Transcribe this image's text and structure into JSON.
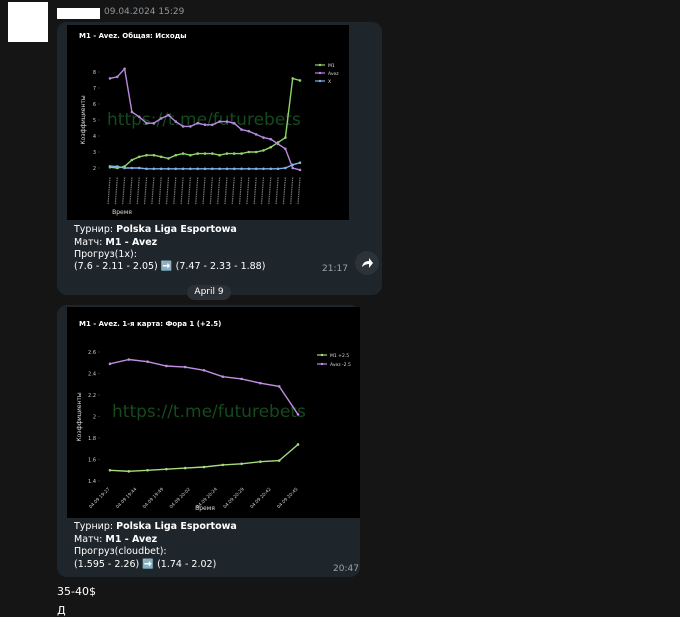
{
  "header": {
    "date": "09.04.2024 15:29"
  },
  "messages": [
    {
      "chart": {
        "type": "line",
        "title": "M1 - Avez. Общая: Исходы",
        "ylabel": "Коэффициенты",
        "xlabel": "Время",
        "watermark": "https://t.me/futurebets",
        "ylim": [
          1.6,
          8.6
        ],
        "yticks": [
          2,
          3,
          4,
          5,
          6,
          7,
          8
        ],
        "legend": "upper right",
        "series": [
          {
            "name": "M1",
            "color": "#8fd46a",
            "values": [
              2.05,
              2.0,
              2.1,
              2.5,
              2.7,
              2.8,
              2.8,
              2.7,
              2.6,
              2.8,
              2.9,
              2.8,
              2.9,
              2.9,
              2.9,
              2.8,
              2.9,
              2.9,
              2.9,
              3.0,
              3.0,
              3.1,
              3.3,
              3.6,
              3.9,
              7.6,
              7.47
            ]
          },
          {
            "name": "Avez",
            "color": "#b98ae0",
            "values": [
              7.6,
              7.7,
              8.2,
              5.5,
              5.2,
              4.8,
              4.8,
              5.1,
              5.3,
              4.9,
              4.6,
              4.6,
              4.8,
              4.7,
              4.7,
              4.9,
              4.9,
              4.8,
              4.4,
              4.3,
              4.1,
              3.9,
              3.8,
              3.5,
              3.2,
              2.0,
              1.88
            ]
          },
          {
            "name": "X",
            "color": "#7fb2ea",
            "values": [
              2.11,
              2.1,
              2.0,
              2.0,
              2.0,
              1.95,
              1.95,
              1.95,
              1.95,
              1.95,
              1.95,
              1.95,
              1.95,
              1.95,
              1.95,
              1.95,
              1.95,
              1.95,
              1.95,
              1.95,
              1.95,
              1.95,
              1.95,
              1.95,
              2.0,
              2.2,
              2.33
            ]
          }
        ]
      },
      "lines": [
        {
          "label": "Турнир:",
          "value": "Polska Liga Esportowa"
        },
        {
          "label": "Матч:",
          "value": "M1 - Avez"
        },
        {
          "label": "Прогруз(1х):",
          "value": ""
        },
        {
          "label": "(7.6 - 2.11 - 2.05) ➡️ (7.47 - 2.33 - 1.88)"
        }
      ],
      "time": "21:17"
    },
    {
      "chart": {
        "type": "line",
        "title": "M1 - Avez. 1-я карта: Фора 1 (+2.5)",
        "ylabel": "Коэффициенты",
        "xlabel": "Время",
        "watermark": "https://t.me/futurebets",
        "ylim": [
          1.36,
          2.64
        ],
        "yticks": [
          1.4,
          1.6,
          1.8,
          2,
          2.2,
          2.4,
          2.6
        ],
        "legend": "upper right",
        "xticklabels": [
          "04.09 19:27",
          "04.09 19:44",
          "04.09 19:49",
          "04.09 20:02",
          "04.09 20:24",
          "04.09 20:29",
          "04.09 20:42",
          "04.09 20:45"
        ],
        "series": [
          {
            "name": "M1 +2.5",
            "color": "#a6dc7e",
            "values": [
              1.5,
              1.49,
              1.5,
              1.51,
              1.52,
              1.53,
              1.55,
              1.56,
              1.58,
              1.59,
              1.74
            ]
          },
          {
            "name": "Avez -2.5",
            "color": "#c08fe2",
            "values": [
              2.49,
              2.53,
              2.51,
              2.47,
              2.46,
              2.43,
              2.37,
              2.35,
              2.31,
              2.28,
              2.02
            ]
          }
        ]
      },
      "lines": [
        {
          "label": "Турнир:",
          "value": "Polska Liga Esportowa"
        },
        {
          "label": "Матч:",
          "value": "M1 - Avez"
        },
        {
          "label": "Прогруз(cloudbet):",
          "value": ""
        },
        {
          "label": "(1.595 - 2.26) ➡️ (1.74 - 2.02)"
        }
      ],
      "time": "20:47"
    }
  ],
  "separator": "April 9",
  "tail": [
    "35-40$",
    "Д"
  ]
}
